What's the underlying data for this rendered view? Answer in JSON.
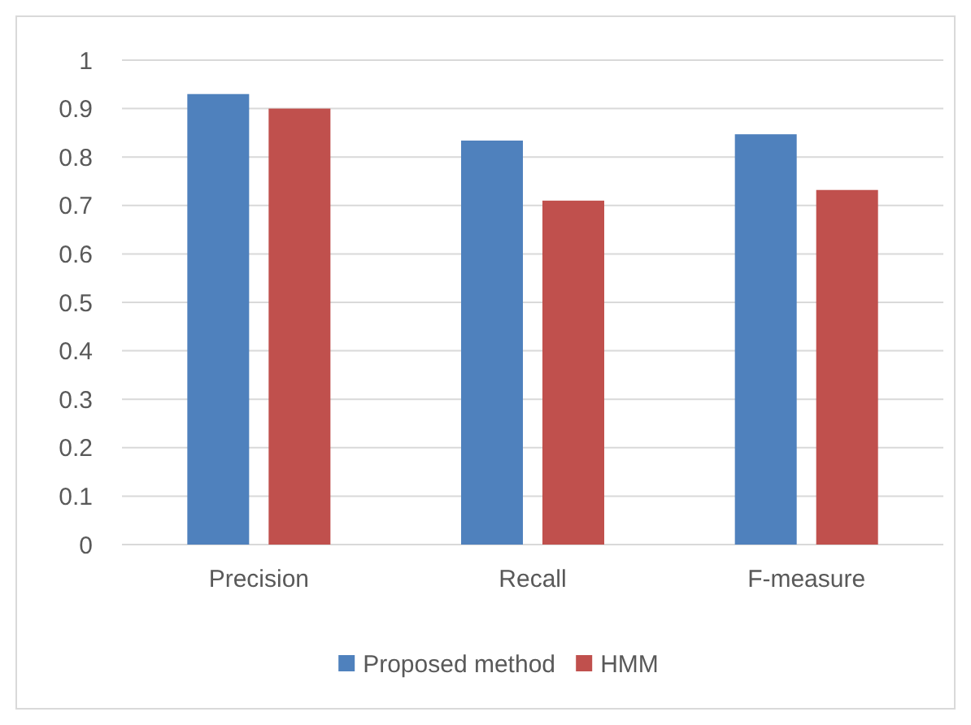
{
  "chart_data": {
    "type": "bar",
    "categories": [
      "Precision",
      "Recall",
      "F-measure"
    ],
    "series": [
      {
        "name": "Proposed method",
        "color": "#4f81bd",
        "values": [
          0.93,
          0.834,
          0.847
        ]
      },
      {
        "name": "HMM",
        "color": "#c0504d",
        "values": [
          0.9,
          0.71,
          0.732
        ]
      }
    ],
    "ylim": [
      0,
      1
    ],
    "yticks": [
      0,
      0.1,
      0.2,
      0.3,
      0.4,
      0.5,
      0.6,
      0.7,
      0.8,
      0.9,
      1
    ],
    "grid": "y",
    "legend": "bottom"
  }
}
